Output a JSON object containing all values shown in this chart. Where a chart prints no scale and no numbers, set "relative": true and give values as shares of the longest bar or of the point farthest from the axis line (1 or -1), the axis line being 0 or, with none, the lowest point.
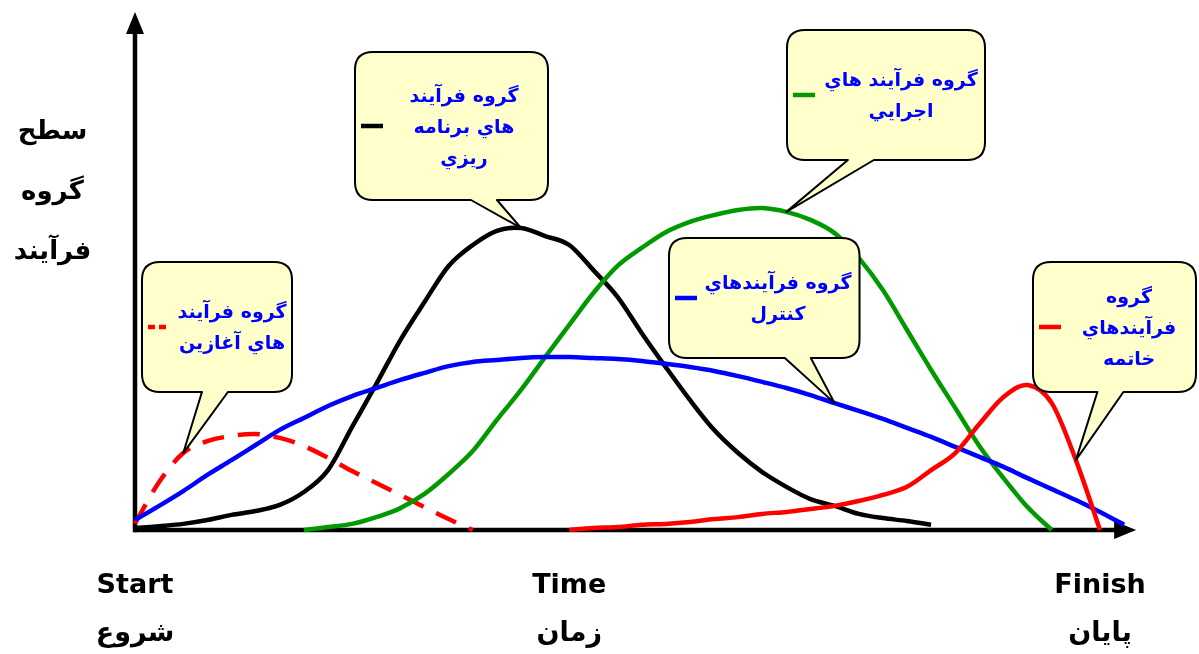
{
  "chart_data": {
    "type": "line",
    "relative": true,
    "legend": "top",
    "ylabel": "سطح گروه فرآیند",
    "categories": [
      "Start شروع",
      null,
      null,
      null,
      null,
      null,
      null,
      null,
      null,
      null,
      null,
      null,
      null,
      null,
      null,
      null,
      null,
      null,
      "Time زمان",
      null,
      null,
      null,
      null,
      null,
      null,
      null,
      null,
      null,
      null,
      null,
      null,
      null,
      null,
      null,
      null,
      null,
      null,
      null,
      null,
      null,
      "Finish پايان",
      null
    ],
    "series": [
      {
        "name": "گروه فرآیند هاي آغازين",
        "color": "#ff0000",
        "line_style": "dashed",
        "values": [
          0.02,
          0.149,
          0.239,
          0.276,
          0.292,
          0.298,
          0.286,
          0.261,
          0.224,
          0.183,
          0.146,
          0.109,
          0.071,
          0.034,
          0,
          null,
          null,
          null,
          null,
          null,
          null,
          null,
          null,
          null,
          null,
          null,
          null,
          null,
          null,
          null,
          null,
          null,
          null,
          null,
          null,
          null,
          null,
          null,
          null,
          null,
          null,
          null
        ]
      },
      {
        "name": "گروه فرآیند هاي برنامه ريزي",
        "color": "#000000",
        "values": [
          0.006,
          0.012,
          0.019,
          0.031,
          0.047,
          0.059,
          0.078,
          0.118,
          0.186,
          0.32,
          0.453,
          0.59,
          0.708,
          0.82,
          0.885,
          0.929,
          0.938,
          0.913,
          0.885,
          0.807,
          0.724,
          0.612,
          0.506,
          0.404,
          0.311,
          0.239,
          0.18,
          0.134,
          0.096,
          0.075,
          0.05,
          0.037,
          0.028,
          0.016,
          null,
          null,
          null,
          null,
          null,
          null,
          null,
          null
        ]
      },
      {
        "name": "گروه فرآیند هاي اجرايي",
        "color": "#009900",
        "values": [
          null,
          null,
          null,
          null,
          null,
          null,
          null,
          0,
          0.009,
          0.019,
          0.04,
          0.068,
          0.112,
          0.174,
          0.245,
          0.342,
          0.435,
          0.537,
          0.637,
          0.736,
          0.82,
          0.876,
          0.925,
          0.957,
          0.978,
          0.994,
          1,
          0.988,
          0.963,
          0.922,
          0.845,
          0.745,
          0.621,
          0.497,
          0.379,
          0.261,
          0.161,
          0.071,
          0,
          null,
          null,
          null
        ]
      },
      {
        "name": "گروه فرآیندهاي کنترل",
        "color": "#0000ff",
        "values": [
          0.031,
          0.075,
          0.121,
          0.171,
          0.217,
          0.264,
          0.311,
          0.348,
          0.385,
          0.416,
          0.441,
          0.466,
          0.488,
          0.509,
          0.522,
          0.528,
          0.534,
          0.537,
          0.537,
          0.534,
          0.531,
          0.525,
          0.516,
          0.506,
          0.494,
          0.478,
          0.46,
          0.441,
          0.419,
          0.394,
          0.37,
          0.345,
          0.317,
          0.289,
          0.258,
          0.227,
          0.196,
          0.161,
          0.127,
          0.093,
          0.056,
          0.016
        ]
      },
      {
        "name": "گروه فرآیندهاي خاتمه",
        "color": "#ff0000",
        "values": [
          null,
          null,
          null,
          null,
          null,
          null,
          null,
          null,
          null,
          null,
          null,
          null,
          null,
          null,
          null,
          null,
          null,
          null,
          0,
          0.006,
          0.009,
          0.016,
          0.019,
          0.025,
          0.034,
          0.04,
          0.05,
          0.056,
          0.065,
          0.075,
          0.09,
          0.109,
          0.134,
          0.186,
          0.239,
          0.329,
          0.413,
          0.45,
          0.394,
          0.217,
          0,
          null
        ]
      }
    ]
  }
}
